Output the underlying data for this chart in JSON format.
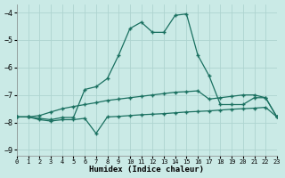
{
  "xlabel": "Humidex (Indice chaleur)",
  "background_color": "#caeae6",
  "grid_color": "#aed4d0",
  "line_color": "#1a7060",
  "xlim": [
    0,
    23
  ],
  "ylim": [
    -9.2,
    -3.7
  ],
  "yticks": [
    -9,
    -8,
    -7,
    -6,
    -5,
    -4
  ],
  "xticks": [
    0,
    1,
    2,
    3,
    4,
    5,
    6,
    7,
    8,
    9,
    10,
    11,
    12,
    13,
    14,
    15,
    16,
    17,
    18,
    19,
    20,
    21,
    22,
    23
  ],
  "line1_x": [
    0,
    1,
    2,
    3,
    4,
    5,
    6,
    7,
    8,
    9,
    10,
    11,
    12,
    13,
    14,
    15,
    16,
    17,
    18,
    19,
    20,
    21,
    22,
    23
  ],
  "line1_y": [
    -7.8,
    -7.8,
    -7.75,
    -7.62,
    -7.5,
    -7.42,
    -7.35,
    -7.28,
    -7.2,
    -7.15,
    -7.1,
    -7.05,
    -7.0,
    -6.95,
    -6.9,
    -6.88,
    -6.85,
    -7.15,
    -7.1,
    -7.05,
    -7.0,
    -7.0,
    -7.1,
    -7.8
  ],
  "line2_x": [
    0,
    1,
    2,
    3,
    4,
    5,
    6,
    7,
    8,
    9,
    10,
    11,
    12,
    13,
    14,
    15,
    16,
    17,
    18,
    19,
    20,
    21,
    22,
    23
  ],
  "line2_y": [
    -7.8,
    -7.8,
    -7.85,
    -7.9,
    -7.82,
    -7.82,
    -6.8,
    -6.7,
    -6.4,
    -5.55,
    -4.58,
    -4.35,
    -4.72,
    -4.72,
    -4.1,
    -4.05,
    -5.55,
    -6.3,
    -7.35,
    -7.35,
    -7.35,
    -7.1,
    -7.1,
    -7.8
  ],
  "line3_x": [
    0,
    1,
    2,
    3,
    4,
    5,
    6,
    7,
    8,
    9,
    10,
    11,
    12,
    13,
    14,
    15,
    16,
    17,
    18,
    19,
    20,
    21,
    22,
    23
  ],
  "line3_y": [
    -7.8,
    -7.8,
    -7.9,
    -7.95,
    -7.9,
    -7.9,
    -7.85,
    -8.4,
    -7.8,
    -7.78,
    -7.75,
    -7.72,
    -7.7,
    -7.68,
    -7.65,
    -7.62,
    -7.6,
    -7.58,
    -7.55,
    -7.52,
    -7.5,
    -7.48,
    -7.45,
    -7.8
  ]
}
